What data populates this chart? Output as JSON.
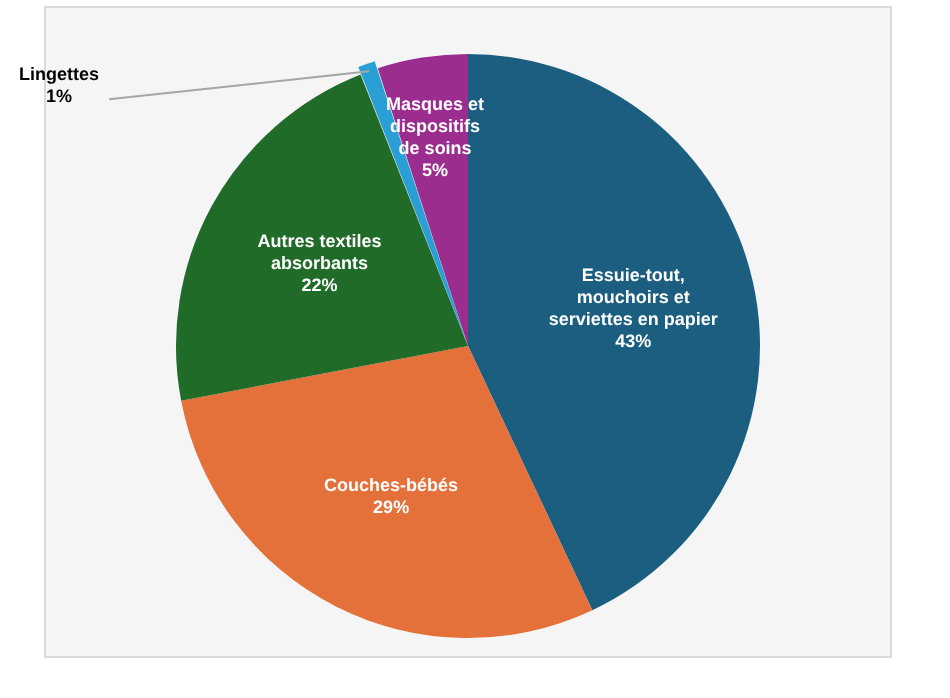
{
  "chart_data": {
    "type": "pie",
    "categories": [
      "Essuie-tout, mouchoirs et serviettes en papier",
      "Couches-bébés",
      "Autres textiles absorbants",
      "Lingettes",
      "Masques et dispositifs de soins"
    ],
    "values": [
      43,
      29,
      22,
      1,
      5
    ],
    "colors": [
      "#1b5e80",
      "#e4703a",
      "#216b29",
      "#2a9fd6",
      "#9b2d8e"
    ],
    "value_labels": [
      "43%",
      "29%",
      "22%",
      "1%",
      "5%"
    ],
    "legend": false
  }
}
